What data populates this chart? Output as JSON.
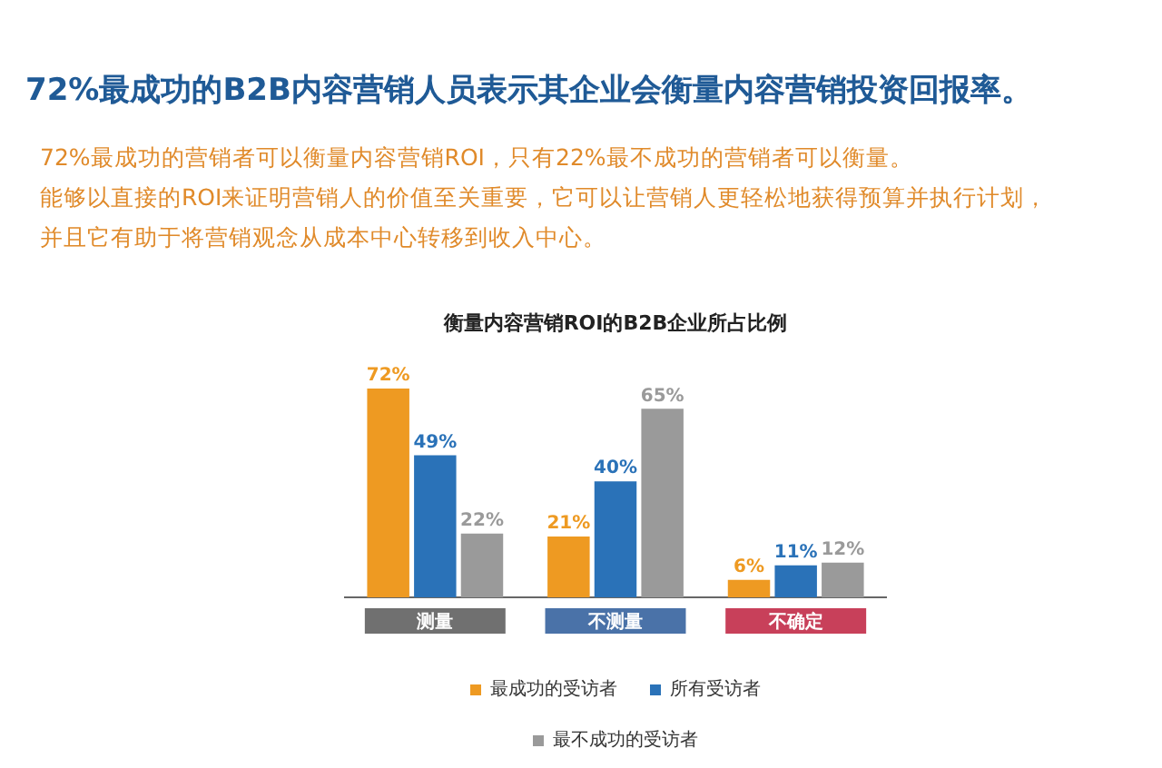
{
  "chart_data": {
    "type": "bar",
    "title": "72%最成功的B2B内容营销人员表示其企业会衡量内容营销投资回报率。",
    "subtitle": "衡量内容营销ROI的B2B企业所占比例",
    "annotations": [
      "72%最成功的营销者可以衡量内容营销ROI，只有22%最不成功的营销者可以衡量。",
      "能够以直接的ROI来证明营销人的价值至关重要，它可以让营销人更轻松地获得预算并执行计划，",
      "并且它有助于将营销观念从成本中心转移到收入中心。"
    ],
    "categories": [
      "测量",
      "不测量",
      "不确定"
    ],
    "series": [
      {
        "name": "最成功的受访者",
        "color": "#ee9a22",
        "values": [
          72,
          21,
          6
        ],
        "value_labels": [
          "72%",
          "21%",
          "6%"
        ]
      },
      {
        "name": "所有受访者",
        "color": "#2a72b8",
        "values": [
          49,
          40,
          11
        ],
        "value_labels": [
          "49%",
          "40%",
          "11%"
        ]
      },
      {
        "name": "最不成功的受访者",
        "color": "#9a9a9a",
        "values": [
          22,
          65,
          12
        ],
        "value_labels": [
          "22%",
          "65%",
          "12%"
        ]
      }
    ],
    "legend": "bottom",
    "grid": false
  }
}
